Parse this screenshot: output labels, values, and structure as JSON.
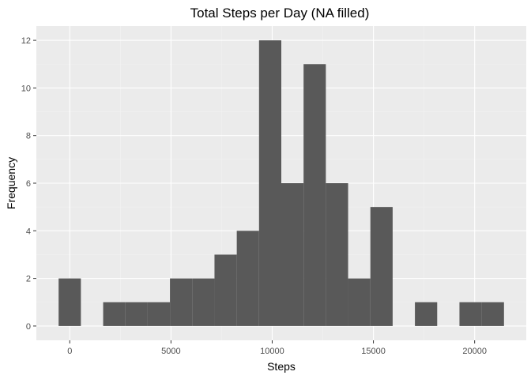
{
  "chart_data": {
    "type": "bar",
    "subtype": "histogram",
    "title": "Total Steps per Day (NA filled)",
    "xlabel": "Steps",
    "ylabel": "Frequency",
    "bin_width": 1100,
    "bins": [
      {
        "x_start": -550,
        "x_end": 550,
        "count": 2
      },
      {
        "x_start": 550,
        "x_end": 1650,
        "count": 0
      },
      {
        "x_start": 1650,
        "x_end": 2750,
        "count": 1
      },
      {
        "x_start": 2750,
        "x_end": 3850,
        "count": 1
      },
      {
        "x_start": 3850,
        "x_end": 4950,
        "count": 1
      },
      {
        "x_start": 4950,
        "x_end": 6050,
        "count": 2
      },
      {
        "x_start": 6050,
        "x_end": 7150,
        "count": 2
      },
      {
        "x_start": 7150,
        "x_end": 8250,
        "count": 3
      },
      {
        "x_start": 8250,
        "x_end": 9350,
        "count": 4
      },
      {
        "x_start": 9350,
        "x_end": 10450,
        "count": 12
      },
      {
        "x_start": 10450,
        "x_end": 11550,
        "count": 6
      },
      {
        "x_start": 11550,
        "x_end": 12650,
        "count": 11
      },
      {
        "x_start": 12650,
        "x_end": 13750,
        "count": 6
      },
      {
        "x_start": 13750,
        "x_end": 14850,
        "count": 2
      },
      {
        "x_start": 14850,
        "x_end": 15950,
        "count": 5
      },
      {
        "x_start": 15950,
        "x_end": 17050,
        "count": 0
      },
      {
        "x_start": 17050,
        "x_end": 18150,
        "count": 1
      },
      {
        "x_start": 18150,
        "x_end": 19250,
        "count": 0
      },
      {
        "x_start": 19250,
        "x_end": 20350,
        "count": 1
      },
      {
        "x_start": 20350,
        "x_end": 21450,
        "count": 1
      }
    ],
    "xlim": [
      -1650,
      22550
    ],
    "ylim": [
      -0.6,
      12.6
    ],
    "x_ticks": [
      0,
      5000,
      10000,
      15000,
      20000
    ],
    "x_tick_labels": [
      "0",
      "5000",
      "10000",
      "15000",
      "20000"
    ],
    "y_ticks": [
      0,
      2,
      4,
      6,
      8,
      10,
      12
    ],
    "y_tick_labels": [
      "0",
      "2",
      "4",
      "6",
      "8",
      "10",
      "12"
    ],
    "grid": true,
    "legend": "none",
    "colors": {
      "bar": "#595959",
      "panel": "#ebebeb",
      "grid_major": "#ffffff",
      "grid_minor": "#f2f2f2",
      "tick": "#333333",
      "tick_label": "#4d4d4d"
    }
  }
}
